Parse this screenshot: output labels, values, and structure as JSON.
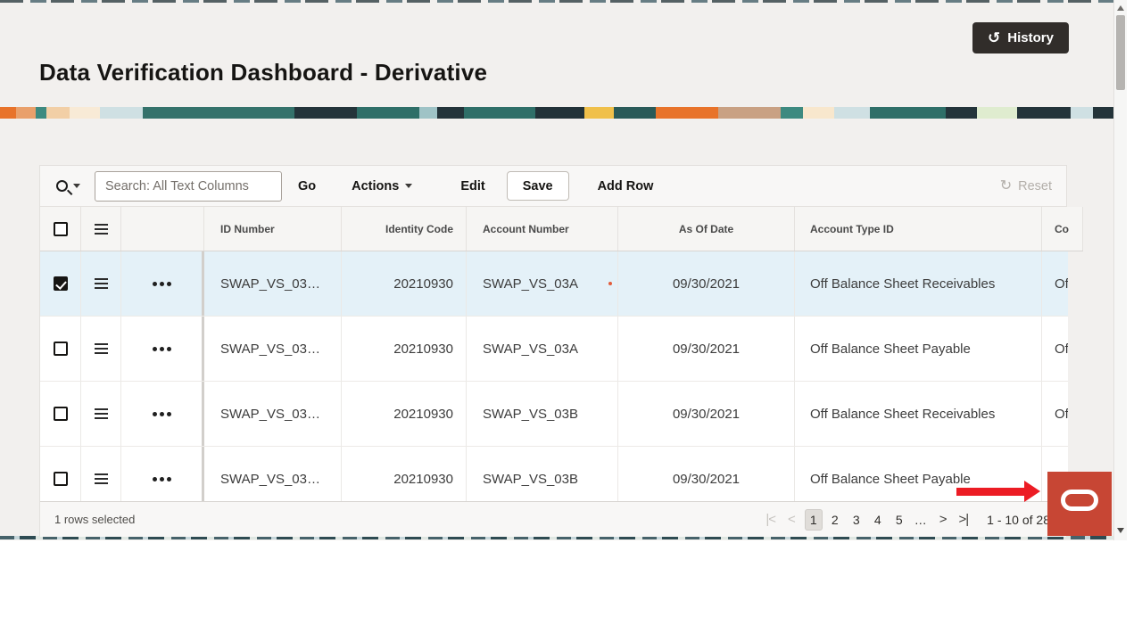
{
  "page": {
    "title": "Data Verification Dashboard - Derivative"
  },
  "header": {
    "history_label": "History"
  },
  "toolbar": {
    "search_placeholder": "Search: All Text Columns",
    "go_label": "Go",
    "actions_label": "Actions",
    "edit_label": "Edit",
    "save_label": "Save",
    "add_row_label": "Add Row",
    "reset_label": "Reset"
  },
  "grid": {
    "columns": {
      "id_number": "ID Number",
      "identity_code": "Identity Code",
      "account_number": "Account Number",
      "as_of_date": "As Of Date",
      "account_type_id": "Account Type ID",
      "co": "Co"
    },
    "rows": [
      {
        "selected": true,
        "edited": true,
        "id_number": "SWAP_VS_03…",
        "identity_code": "20210930",
        "account_number": "SWAP_VS_03A",
        "as_of_date": "09/30/2021",
        "account_type_id": "Off Balance Sheet Receivables",
        "co": "Of"
      },
      {
        "selected": false,
        "edited": false,
        "id_number": "SWAP_VS_03…",
        "identity_code": "20210930",
        "account_number": "SWAP_VS_03A",
        "as_of_date": "09/30/2021",
        "account_type_id": "Off Balance Sheet Payable",
        "co": "Of"
      },
      {
        "selected": false,
        "edited": false,
        "id_number": "SWAP_VS_03…",
        "identity_code": "20210930",
        "account_number": "SWAP_VS_03B",
        "as_of_date": "09/30/2021",
        "account_type_id": "Off Balance Sheet Receivables",
        "co": "Of"
      },
      {
        "selected": false,
        "edited": false,
        "id_number": "SWAP_VS_03…",
        "identity_code": "20210930",
        "account_number": "SWAP_VS_03B",
        "as_of_date": "09/30/2021",
        "account_type_id": "Off Balance Sheet Payable",
        "co": ""
      }
    ]
  },
  "footer": {
    "selection_text": "1 rows selected",
    "pagination_icons": {
      "first": "|<",
      "prev": "<",
      "next": ">",
      "last": ">|"
    },
    "pages": [
      "1",
      "2",
      "3",
      "4",
      "5",
      "…"
    ],
    "current_page": "1",
    "range_text": "1 - 10 of 28"
  },
  "colors": {
    "accent_red": "#c74634",
    "annotation_red": "#ec1c24",
    "history_button_bg": "#312d2a",
    "selected_row": "#e4f1f8"
  }
}
